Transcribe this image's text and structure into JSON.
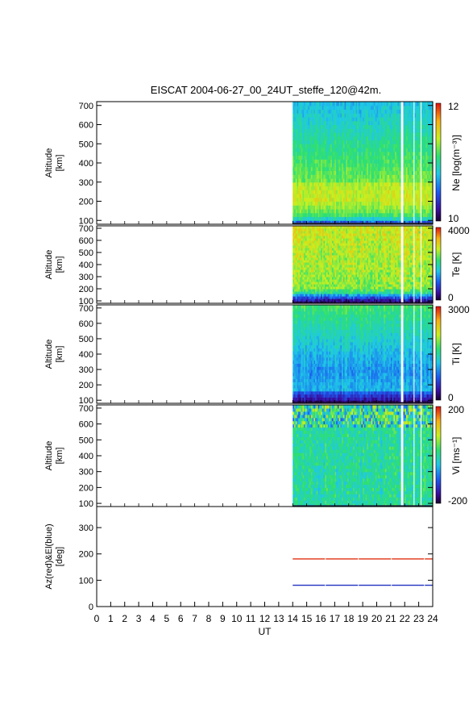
{
  "title": "EISCAT 2004-06-27_00_24UT_steffe_120@42m.",
  "x_axis": {
    "label": "UT",
    "ticks": [
      "0",
      "1",
      "2",
      "3",
      "4",
      "5",
      "6",
      "7",
      "8",
      "9",
      "10",
      "11",
      "12",
      "13",
      "14",
      "15",
      "16",
      "17",
      "18",
      "19",
      "20",
      "21",
      "22",
      "23",
      "24"
    ]
  },
  "panels": [
    {
      "id": "ne",
      "ylabel_line1": "Altitude",
      "ylabel_line2": "[km]",
      "yticks": [
        "100",
        "200",
        "300",
        "400",
        "500",
        "600",
        "700"
      ],
      "colorbar_label": "Ne [log(m⁻³)]",
      "colorbar_max": "12",
      "colorbar_min": "10"
    },
    {
      "id": "te",
      "ylabel_line1": "Altitude",
      "ylabel_line2": "[km]",
      "yticks": [
        "100",
        "200",
        "300",
        "400",
        "500",
        "600",
        "700"
      ],
      "colorbar_label": "Te [K]",
      "colorbar_max": "4000",
      "colorbar_min": "0"
    },
    {
      "id": "ti",
      "ylabel_line1": "Altitude",
      "ylabel_line2": "[km]",
      "yticks": [
        "100",
        "200",
        "300",
        "400",
        "500",
        "600",
        "700"
      ],
      "colorbar_label": "Ti [K]",
      "colorbar_max": "3000",
      "colorbar_min": "0"
    },
    {
      "id": "vi",
      "ylabel_line1": "Altitude",
      "ylabel_line2": "[km]",
      "yticks": [
        "100",
        "200",
        "300",
        "400",
        "500",
        "600",
        "700"
      ],
      "colorbar_label": "Vi [ms⁻¹]",
      "colorbar_max": "200",
      "colorbar_min": "-200"
    },
    {
      "id": "azel",
      "ylabel_line1": "Az(red)&El(blue)",
      "ylabel_line2": "[deg]",
      "yticks": [
        "0",
        "100",
        "200",
        "300"
      ]
    }
  ],
  "chart_data": {
    "type": "heatmap",
    "title": "EISCAT 2004-06-27_00_24UT_steffe_120@42m.",
    "xlabel": "UT",
    "xlim": [
      0,
      24
    ],
    "data_coverage_ut": [
      14.0,
      24.0
    ],
    "data_gaps_ut": [
      [
        21.7,
        21.85
      ],
      [
        22.6,
        22.7
      ],
      [
        23.05,
        23.15
      ]
    ],
    "altitude_km_range": [
      80,
      720
    ],
    "ylabel": "Altitude [km]",
    "parameters": [
      {
        "name": "Ne [log(m⁻³)]",
        "range": [
          10,
          12
        ]
      },
      {
        "name": "Te [K]",
        "range": [
          0,
          4000
        ]
      },
      {
        "name": "Ti [K]",
        "range": [
          0,
          3000
        ]
      },
      {
        "name": "Vi [ms⁻¹]",
        "range": [
          -200,
          200
        ]
      }
    ],
    "pointing": {
      "ylabel": "Az(red)&El(blue) [deg]",
      "ylim": [
        0,
        380
      ],
      "series": [
        {
          "name": "Az",
          "color": "#e03010",
          "x": [
            14,
            24
          ],
          "values": [
            181,
            181
          ]
        },
        {
          "name": "El",
          "color": "#2030c0",
          "x": [
            14,
            24
          ],
          "values": [
            81,
            81
          ]
        }
      ]
    }
  }
}
